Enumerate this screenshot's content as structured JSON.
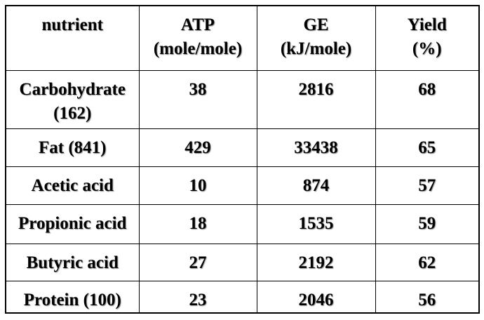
{
  "table": {
    "header": [
      "nutrient",
      "ATP\n(mole/mole)",
      "GE\n(kJ/mole)",
      "Yield\n(%)"
    ],
    "rows": [
      [
        "Carbohydrate\n(162)",
        "38",
        "2816",
        "68"
      ],
      [
        "Fat (841)",
        "429",
        "33438",
        "65"
      ],
      [
        "Acetic acid",
        "10",
        "874",
        "57"
      ],
      [
        "Propionic acid",
        "18",
        "1535",
        "59"
      ],
      [
        "Butyric acid",
        "27",
        "2192",
        "62"
      ],
      [
        "Protein (100)",
        "23",
        "2046",
        "56"
      ]
    ]
  }
}
